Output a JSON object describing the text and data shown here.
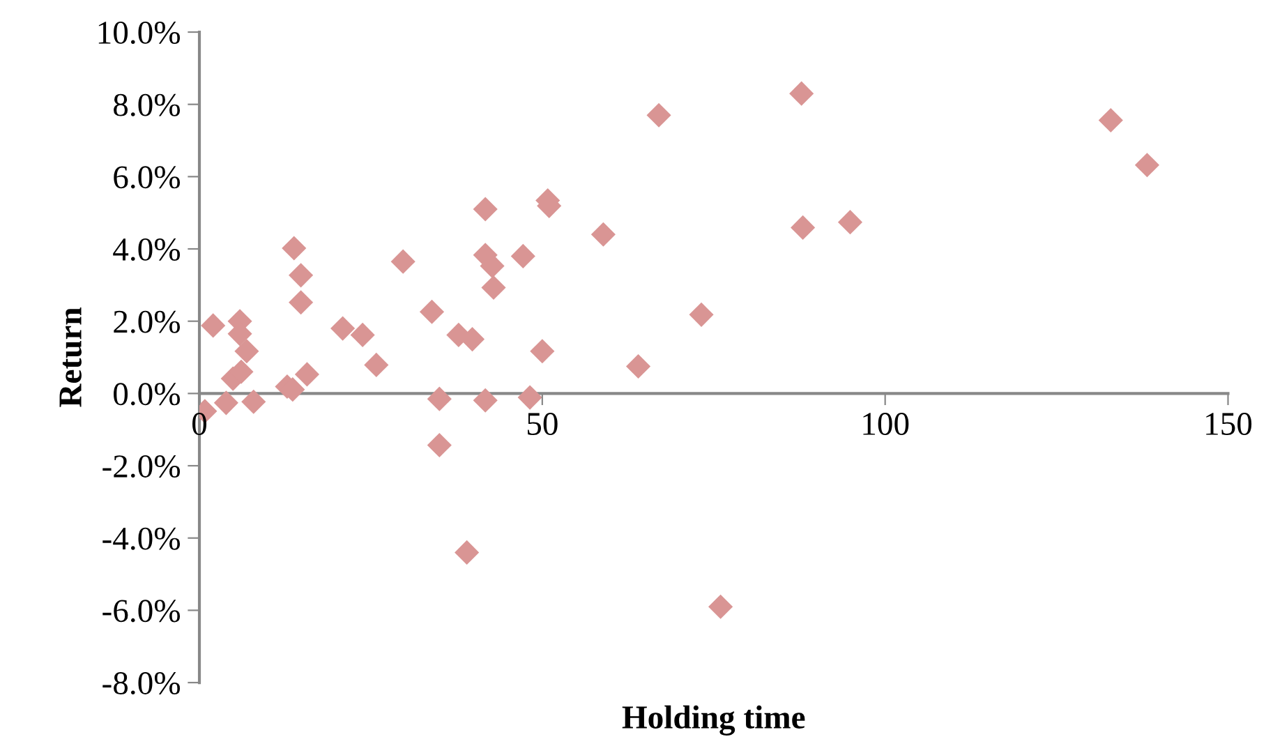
{
  "chart_data": {
    "type": "scatter",
    "xlabel": "Holding time",
    "ylabel": "Return",
    "marker": "diamond",
    "grid": false,
    "legend": false,
    "xlim": [
      0,
      150
    ],
    "xticks": [
      0,
      50,
      100,
      150
    ],
    "ylim": [
      -8,
      10
    ],
    "yticks": [
      {
        "value": -8,
        "label": "-8.0%"
      },
      {
        "value": -6,
        "label": "-6.0%"
      },
      {
        "value": -4,
        "label": "-4.0%"
      },
      {
        "value": -2,
        "label": "-2.0%"
      },
      {
        "value": 0,
        "label": "0.0%"
      },
      {
        "value": 2,
        "label": "2.0%"
      },
      {
        "value": 4,
        "label": "4.0%"
      },
      {
        "value": 6,
        "label": "6.0%"
      },
      {
        "value": 8,
        "label": "8.0%"
      },
      {
        "value": 10,
        "label": "10.0%"
      }
    ],
    "series": [
      {
        "color": "#d99594",
        "x": [
          0.8,
          2,
          3.9,
          4.9,
          5.9,
          5.9,
          6.1,
          6.9,
          7.9,
          12.8,
          13.6,
          13.8,
          14.8,
          14.8,
          15.7,
          20.9,
          23.8,
          25.8,
          29.7,
          33.9,
          35,
          35,
          37.8,
          39,
          39.8,
          41.7,
          41.7,
          41.7,
          42.7,
          42.9,
          47.2,
          48.2,
          50,
          50.8,
          51,
          58.9,
          64,
          67,
          73.2,
          76,
          87.8,
          88,
          94.9,
          132.9,
          138.2
        ],
        "values": [
          -0.49,
          1.88,
          -0.26,
          0.41,
          2.0,
          1.65,
          0.6,
          1.17,
          -0.23,
          0.19,
          0.11,
          4.02,
          3.27,
          2.52,
          0.53,
          1.8,
          1.62,
          0.79,
          3.65,
          2.26,
          -0.15,
          -1.43,
          1.62,
          -4.4,
          1.5,
          5.1,
          3.83,
          -0.19,
          3.53,
          2.93,
          3.8,
          -0.11,
          1.17,
          5.34,
          5.19,
          4.4,
          0.75,
          7.7,
          2.18,
          -5.9,
          8.3,
          4.59,
          4.74,
          7.56,
          6.32
        ]
      }
    ]
  }
}
